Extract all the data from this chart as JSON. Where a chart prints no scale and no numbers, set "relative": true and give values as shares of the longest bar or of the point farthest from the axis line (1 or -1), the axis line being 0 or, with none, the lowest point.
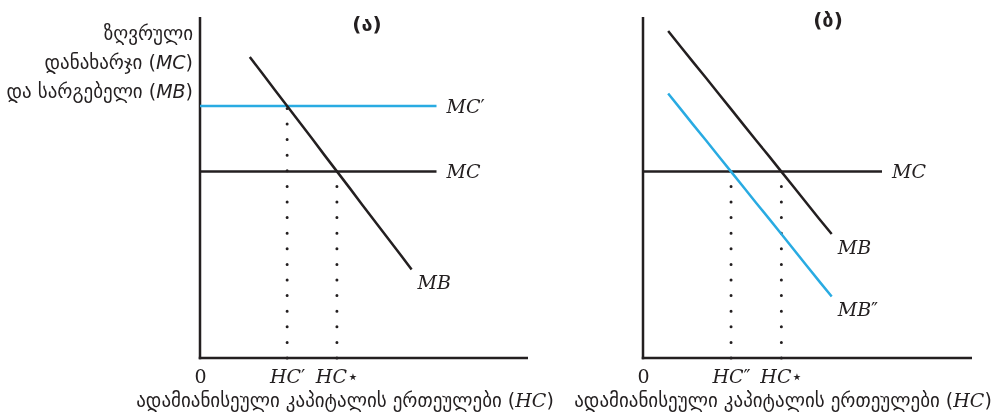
{
  "chart_data": [
    {
      "type": "line",
      "title": "(ა)",
      "ylabel": "ზღვრული\nდანახარჯი (MC)\nდა სარგებელი (MB)",
      "xlabel": "ადამიანისეული კაპიტალის ერთეულები (HC)",
      "relative": true,
      "categories": [
        "0",
        null,
        null,
        null,
        null,
        null,
        null,
        "HC′",
        null,
        null,
        null,
        "HC⋆",
        null,
        null,
        null,
        null,
        null,
        null,
        null,
        null
      ],
      "ref_lines": [
        {
          "axis": "x",
          "value": "HC′",
          "color": "#231f20",
          "line_style": "dotted"
        },
        {
          "axis": "x",
          "value": "HC⋆",
          "color": "#231f20",
          "line_style": "dotted"
        }
      ],
      "series": [
        {
          "name": "MC′",
          "color": "#29abe2",
          "values": [
            0.837,
            0.837,
            0.837,
            0.837,
            0.837,
            0.837,
            0.837,
            0.837,
            0.837,
            0.837,
            0.837,
            0.837,
            0.837,
            0.837,
            0.837,
            0.837,
            0.837,
            0.837,
            0.837,
            0.837
          ]
        },
        {
          "name": "MC",
          "color": "#231f20",
          "values": [
            0.62,
            0.62,
            0.62,
            0.62,
            0.62,
            0.62,
            0.62,
            0.62,
            0.62,
            0.62,
            0.62,
            0.62,
            0.62,
            0.62,
            0.62,
            0.62,
            0.62,
            0.62,
            0.62,
            0.62
          ]
        },
        {
          "name": "MB",
          "color": "#231f20",
          "values": [
            null,
            null,
            null,
            null,
            1,
            0.946,
            0.891,
            0.837,
            0.783,
            0.729,
            0.674,
            0.62,
            0.566,
            0.511,
            0.457,
            0.403,
            0.349,
            0.294,
            null,
            null
          ]
        }
      ]
    },
    {
      "type": "line",
      "title": "(ბ)",
      "xlabel": "ადამიანისეული კაპიტალის ერთეულები (HC)",
      "relative": true,
      "categories": [
        "0",
        null,
        null,
        null,
        null,
        null,
        null,
        "HC″",
        null,
        null,
        null,
        "HC⋆",
        null,
        null,
        null,
        null,
        null,
        null,
        null,
        null
      ],
      "ref_lines": [
        {
          "axis": "x",
          "value": "HC″",
          "color": "#231f20",
          "line_style": "dotted"
        },
        {
          "axis": "x",
          "value": "HC⋆",
          "color": "#231f20",
          "line_style": "dotted"
        }
      ],
      "series": [
        {
          "name": "MC",
          "color": "#231f20",
          "values": [
            0.57,
            0.57,
            0.57,
            0.57,
            0.57,
            0.57,
            0.57,
            0.57,
            0.57,
            0.57,
            0.57,
            0.57,
            0.57,
            0.57,
            0.57,
            0.57,
            0.57,
            0.57,
            0.57,
            0.57
          ]
        },
        {
          "name": "MB",
          "color": "#231f20",
          "values": [
            null,
            null,
            1,
            0.952,
            0.904,
            0.857,
            0.809,
            0.761,
            0.713,
            0.665,
            0.618,
            0.57,
            0.522,
            0.474,
            0.426,
            0.379,
            null,
            null,
            null,
            null
          ]
        },
        {
          "name": "MB″",
          "color": "#29abe2",
          "values": [
            null,
            null,
            0.809,
            0.761,
            0.713,
            0.666,
            0.618,
            0.57,
            0.522,
            0.474,
            0.427,
            0.379,
            0.331,
            0.283,
            0.235,
            0.188,
            null,
            null,
            null,
            null
          ]
        }
      ]
    }
  ]
}
